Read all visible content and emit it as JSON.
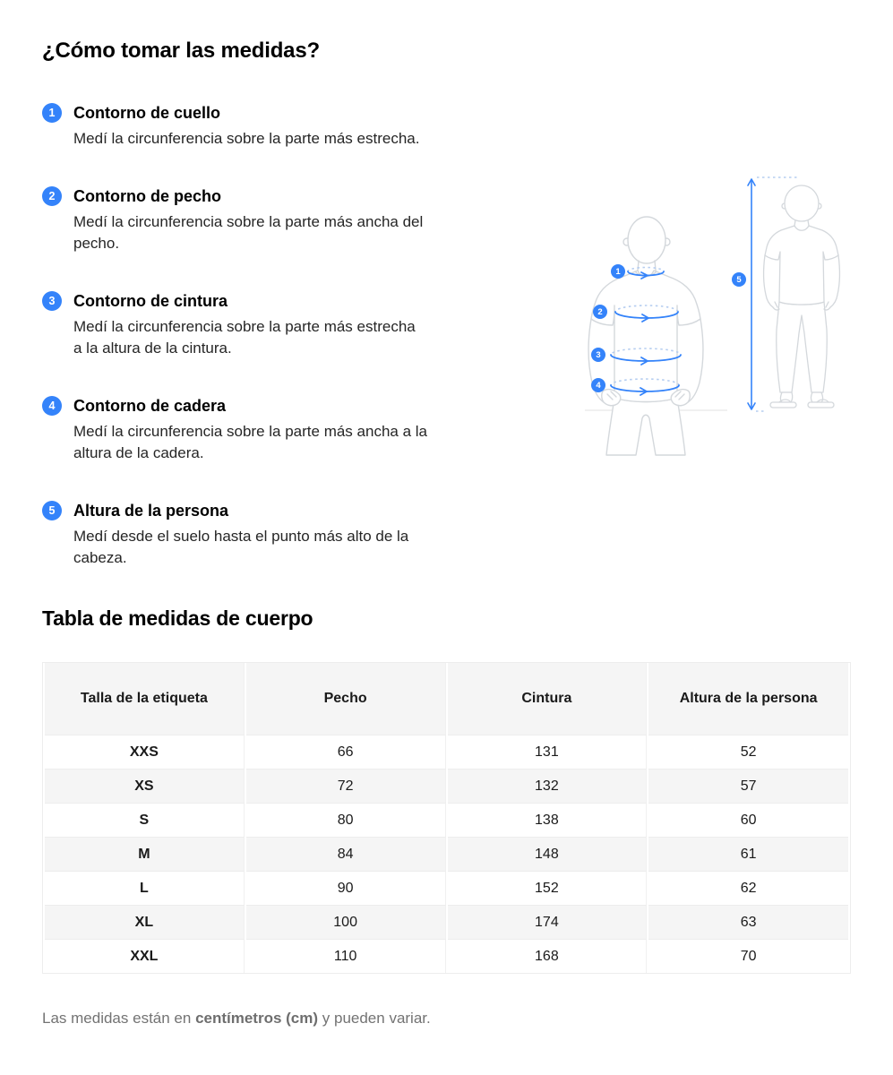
{
  "header": {
    "title": "¿Cómo tomar las medidas?"
  },
  "steps": [
    {
      "number": "1",
      "title": "Contorno de cuello",
      "desc_lines": [
        "Medí la circunferencia sobre la parte más estrecha."
      ]
    },
    {
      "number": "2",
      "title": "Contorno de pecho",
      "desc_lines": [
        "Medí la circunferencia sobre la parte más ancha del",
        "pecho."
      ]
    },
    {
      "number": "3",
      "title": "Contorno de cintura",
      "desc_lines": [
        "Medí la circunferencia sobre la parte más estrecha",
        "a la altura de la cintura."
      ]
    },
    {
      "number": "4",
      "title": "Contorno de cadera",
      "desc_lines": [
        "Medí la circunferencia sobre la parte más ancha a la",
        "altura de la cadera."
      ]
    },
    {
      "number": "5",
      "title": "Altura de la persona",
      "desc_lines": [
        "Medí desde el suelo hasta el punto más alto de la",
        "cabeza."
      ]
    }
  ],
  "figure": {
    "badges": [
      "1",
      "2",
      "3",
      "4",
      "5"
    ]
  },
  "table_section": {
    "title": "Tabla de medidas de cuerpo",
    "columns": [
      "Talla de la etiqueta",
      "Pecho",
      "Cintura",
      "Altura de la persona"
    ],
    "rows": [
      {
        "label": "XXS",
        "values": [
          "66",
          "131",
          "52"
        ]
      },
      {
        "label": "XS",
        "values": [
          "72",
          "132",
          "57"
        ]
      },
      {
        "label": "S",
        "values": [
          "80",
          "138",
          "60"
        ]
      },
      {
        "label": "M",
        "values": [
          "84",
          "148",
          "61"
        ]
      },
      {
        "label": "L",
        "values": [
          "90",
          "152",
          "62"
        ]
      },
      {
        "label": "XL",
        "values": [
          "100",
          "174",
          "63"
        ]
      },
      {
        "label": "XXL",
        "values": [
          "110",
          "168",
          "70"
        ]
      }
    ]
  },
  "footnote": {
    "prefix": "Las medidas están en ",
    "bold": "centímetros (cm)",
    "suffix": " y pueden variar."
  },
  "colors": {
    "accent_blue": "#3483fa",
    "dashed_blue": "#b5cdf0",
    "figure_line_gray": "#d4d8dc",
    "table_stripe": "#f5f5f5",
    "table_border": "#ededed",
    "muted_text": "#737373"
  }
}
